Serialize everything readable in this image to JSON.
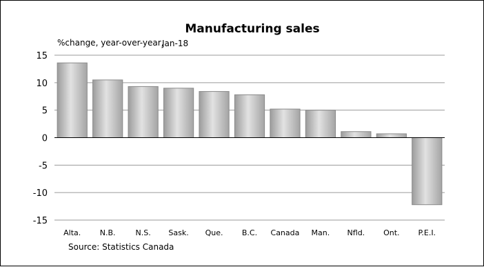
{
  "chart_data": {
    "type": "bar",
    "title": "Manufacturing sales",
    "ylabel": "%change, year-over-year,",
    "subtitle": "Jan-18",
    "source": "Source: Statistics Canada",
    "categories": [
      "Alta.",
      "N.B.",
      "N.S.",
      "Sask.",
      "Que.",
      "B.C.",
      "Canada",
      "Man.",
      "Nfld.",
      "Ont.",
      "P.E.I."
    ],
    "values": [
      13.6,
      10.5,
      9.3,
      9.0,
      8.4,
      7.8,
      5.2,
      5.0,
      1.1,
      0.7,
      -12.2
    ],
    "ylim": [
      -15,
      15
    ],
    "yticks": [
      15,
      10,
      5,
      0,
      -5,
      -10,
      -15
    ],
    "grid": true,
    "legend": "none",
    "colors": {
      "bar": "#bdbdbd",
      "bar_edge": "#8a8a8a",
      "grid": "#9a9a9a",
      "axis": "#000000"
    }
  }
}
